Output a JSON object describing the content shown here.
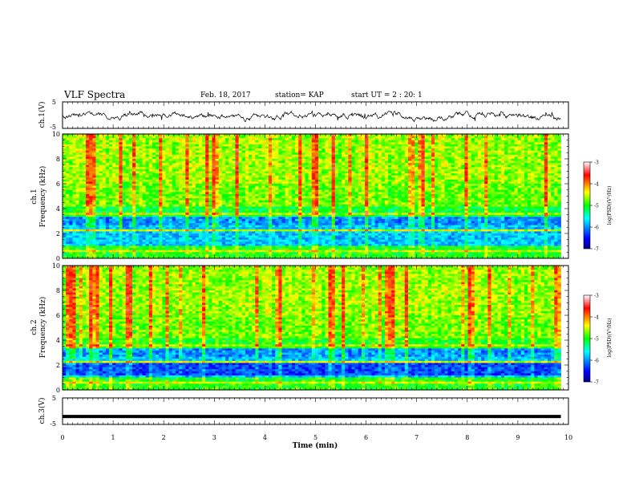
{
  "header": {
    "title": "VLF Spectra",
    "date": "Feb. 18, 2017",
    "station": "station= KAP",
    "start_ut": "start  UT =   2 : 20: 1"
  },
  "chart_data": [
    {
      "type": "line",
      "panel": "ch1-waveform",
      "ylabel": "ch.1(V)",
      "ylim": [
        -5,
        5
      ],
      "yticks": [
        -5,
        5
      ],
      "xlim": [
        0,
        10
      ],
      "trace_range": [
        -2.5,
        1.5
      ],
      "x_end": 9.85
    },
    {
      "type": "heatmap",
      "panel": "ch1-spectrogram",
      "ylabel_channel": "ch.1",
      "ylabel": "Frequency (kHz)",
      "ylim": [
        0,
        10
      ],
      "yticks": [
        0,
        2,
        4,
        6,
        8,
        10
      ],
      "xlim": [
        0,
        10
      ],
      "x_end": 9.85,
      "colorbar": {
        "label": "log(PSD)(V²/Hz)",
        "range": [
          -7,
          -3
        ],
        "ticks": [
          -3,
          -4,
          -5,
          -6,
          -7
        ]
      }
    },
    {
      "type": "heatmap",
      "panel": "ch2-spectrogram",
      "ylabel_channel": "ch.2",
      "ylabel": "Frequency (kHz)",
      "ylim": [
        0,
        10
      ],
      "yticks": [
        0,
        2,
        4,
        6,
        8,
        10
      ],
      "xlim": [
        0,
        10
      ],
      "x_end": 9.85,
      "colorbar": {
        "label": "log(PSD)(V²/Hz)",
        "range": [
          -7,
          -3
        ],
        "ticks": [
          -3,
          -4,
          -5,
          -6,
          -7
        ]
      }
    },
    {
      "type": "line",
      "panel": "ch3-waveform",
      "ylabel": "ch.3(V)",
      "ylim": [
        -5,
        5
      ],
      "yticks": [
        -5,
        5
      ],
      "xlim": [
        0,
        10
      ],
      "trace_value": -2.0,
      "x_end": 9.85,
      "xlabel": "Time (min)",
      "xticks": [
        0,
        1,
        2,
        3,
        4,
        5,
        6,
        7,
        8,
        9,
        10
      ]
    }
  ]
}
